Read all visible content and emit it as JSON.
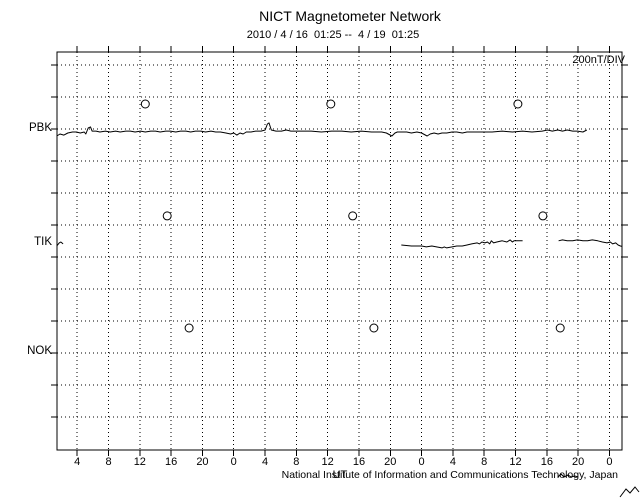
{
  "header": {
    "title": "NICT Magnetometer Network",
    "subtitle": "2010 / 4 / 16  01:25 --  4 / 19  01:25"
  },
  "plot": {
    "scale_label": "200nT/DIV"
  },
  "footer": {
    "axis_label": "UT",
    "credit": "National Institute of Information and Communications Technology, Japan"
  },
  "chart_data": {
    "type": "line",
    "title": "NICT Magnetometer Network",
    "time_range_label": "2010 / 4 / 16  01:25 --  4 / 19  01:25",
    "y_scale_label": "200nT/DIV",
    "x_axis_unit": "UT",
    "grid": true,
    "x_start_hour": 1.42,
    "x_end_hour": 73.6,
    "x_tick_hours": [
      4,
      8,
      12,
      16,
      20,
      24,
      28,
      32,
      36,
      40,
      44,
      48,
      52,
      56,
      60,
      64,
      68,
      72
    ],
    "x_tick_labels": [
      "4",
      "8",
      "12",
      "16",
      "20",
      "0",
      "4",
      "8",
      "12",
      "16",
      "20",
      "0",
      "4",
      "8",
      "12",
      "16",
      "20",
      "0"
    ],
    "y_divisions": 12,
    "div_nT": 200,
    "stations": [
      {
        "name": "PBK",
        "baseline_div": 2.0
      },
      {
        "name": "TIK",
        "baseline_div": 5.56
      },
      {
        "name": "NOK",
        "baseline_div": 8.97
      }
    ],
    "day_markers": [
      {
        "station": "PBK",
        "hours": [
          12.7,
          36.4,
          60.3
        ],
        "offset_nT": 156
      },
      {
        "station": "TIK",
        "hours": [
          15.5,
          39.2,
          63.5
        ],
        "offset_nT": 169
      },
      {
        "station": "NOK",
        "hours": [
          18.3,
          41.9,
          65.7
        ],
        "offset_nT": 150
      }
    ],
    "series": [
      {
        "name": "PBK",
        "segments": [
          [
            [
              1.4,
              -44
            ],
            [
              1.8,
              -31
            ],
            [
              2.3,
              -38
            ],
            [
              2.8,
              -25
            ],
            [
              3.4,
              -19
            ],
            [
              3.9,
              -19
            ],
            [
              4.4,
              -25
            ],
            [
              4.9,
              -19
            ],
            [
              5.1,
              -31
            ],
            [
              5.4,
              6
            ],
            [
              5.7,
              13
            ],
            [
              5.9,
              -13
            ],
            [
              6.4,
              -13
            ],
            [
              6.9,
              -19
            ],
            [
              7.6,
              -13
            ],
            [
              8.2,
              -19
            ],
            [
              8.9,
              -13
            ],
            [
              9.5,
              -19
            ],
            [
              10.2,
              -13
            ],
            [
              10.8,
              -13
            ],
            [
              11.4,
              -19
            ],
            [
              12.1,
              -13
            ],
            [
              12.7,
              -19
            ],
            [
              13.4,
              -13
            ],
            [
              14.0,
              -13
            ],
            [
              14.6,
              -19
            ],
            [
              15.3,
              -13
            ],
            [
              15.9,
              -13
            ],
            [
              16.6,
              -19
            ],
            [
              17.2,
              -13
            ],
            [
              17.9,
              -13
            ],
            [
              18.5,
              -19
            ],
            [
              19.1,
              -13
            ],
            [
              19.8,
              -13
            ],
            [
              20.4,
              -19
            ],
            [
              21.1,
              -13
            ],
            [
              21.7,
              -19
            ],
            [
              22.3,
              -19
            ],
            [
              23.0,
              -25
            ],
            [
              23.6,
              -31
            ],
            [
              24.0,
              -25
            ],
            [
              24.4,
              -38
            ],
            [
              24.8,
              -25
            ],
            [
              25.2,
              -31
            ],
            [
              25.6,
              -19
            ],
            [
              26.2,
              -19
            ],
            [
              26.8,
              -13
            ],
            [
              27.5,
              -13
            ],
            [
              28.0,
              -6
            ],
            [
              28.3,
              31
            ],
            [
              28.5,
              38
            ],
            [
              28.8,
              -6
            ],
            [
              29.4,
              -13
            ],
            [
              30.1,
              -13
            ],
            [
              30.7,
              -6
            ],
            [
              31.3,
              -13
            ],
            [
              32.0,
              -13
            ],
            [
              32.6,
              -13
            ],
            [
              33.9,
              -13
            ],
            [
              35.2,
              -19
            ],
            [
              36.5,
              -13
            ],
            [
              37.8,
              -13
            ],
            [
              39.0,
              -19
            ],
            [
              40.3,
              -13
            ],
            [
              41.6,
              -19
            ],
            [
              42.9,
              -19
            ],
            [
              43.5,
              -25
            ],
            [
              44.2,
              -44
            ],
            [
              44.6,
              -25
            ],
            [
              44.9,
              -19
            ],
            [
              45.5,
              -19
            ],
            [
              46.1,
              -19
            ],
            [
              46.7,
              -25
            ],
            [
              47.4,
              -19
            ],
            [
              48.0,
              -25
            ],
            [
              48.7,
              -44
            ],
            [
              49.1,
              -31
            ],
            [
              49.6,
              -25
            ],
            [
              50.1,
              -31
            ],
            [
              50.6,
              -25
            ],
            [
              51.2,
              -25
            ],
            [
              51.9,
              -19
            ],
            [
              52.5,
              -19
            ],
            [
              53.2,
              -25
            ],
            [
              53.8,
              -19
            ],
            [
              54.4,
              -19
            ],
            [
              55.7,
              -19
            ],
            [
              57.0,
              -19
            ],
            [
              58.3,
              -13
            ],
            [
              59.6,
              -19
            ],
            [
              60.9,
              -13
            ],
            [
              62.1,
              -19
            ],
            [
              63.4,
              -13
            ],
            [
              64.1,
              -6
            ],
            [
              64.7,
              -13
            ],
            [
              65.4,
              -6
            ],
            [
              66.0,
              -13
            ],
            [
              66.6,
              -6
            ],
            [
              67.3,
              -13
            ],
            [
              67.9,
              -13
            ],
            [
              68.6,
              -19
            ],
            [
              69.1,
              -6
            ]
          ]
        ]
      },
      {
        "name": "TIK",
        "segments": [
          [
            [
              1.4,
              -19
            ],
            [
              1.7,
              0
            ],
            [
              1.9,
              6
            ],
            [
              2.2,
              -6
            ]
          ],
          [
            [
              45.4,
              -13
            ],
            [
              46.7,
              -19
            ],
            [
              48.0,
              -19
            ],
            [
              48.6,
              -25
            ],
            [
              49.3,
              -19
            ],
            [
              49.9,
              -25
            ],
            [
              50.6,
              -31
            ],
            [
              50.9,
              -25
            ],
            [
              51.2,
              -31
            ],
            [
              51.9,
              -25
            ],
            [
              52.5,
              -19
            ],
            [
              53.2,
              -19
            ],
            [
              53.8,
              -13
            ],
            [
              54.4,
              -6
            ],
            [
              55.1,
              0
            ],
            [
              55.4,
              -6
            ],
            [
              55.7,
              6
            ],
            [
              56.1,
              0
            ],
            [
              56.4,
              6
            ],
            [
              56.7,
              -6
            ],
            [
              56.9,
              13
            ],
            [
              57.2,
              0
            ],
            [
              57.6,
              6
            ],
            [
              58.3,
              13
            ],
            [
              58.9,
              6
            ],
            [
              59.3,
              19
            ],
            [
              59.6,
              6
            ],
            [
              59.8,
              13
            ],
            [
              60.2,
              13
            ],
            [
              60.6,
              13
            ],
            [
              60.9,
              13
            ]
          ],
          [
            [
              65.5,
              13
            ],
            [
              66.0,
              19
            ],
            [
              66.6,
              13
            ],
            [
              67.3,
              13
            ],
            [
              67.9,
              19
            ],
            [
              68.6,
              13
            ],
            [
              69.2,
              13
            ],
            [
              69.8,
              19
            ],
            [
              70.5,
              13
            ],
            [
              71.1,
              6
            ],
            [
              71.7,
              0
            ],
            [
              72.1,
              6
            ],
            [
              72.4,
              -6
            ],
            [
              72.8,
              0
            ],
            [
              73.1,
              -13
            ],
            [
              73.4,
              -19
            ],
            [
              73.6,
              -22
            ]
          ]
        ]
      },
      {
        "name": "NOK",
        "segments": []
      }
    ]
  }
}
